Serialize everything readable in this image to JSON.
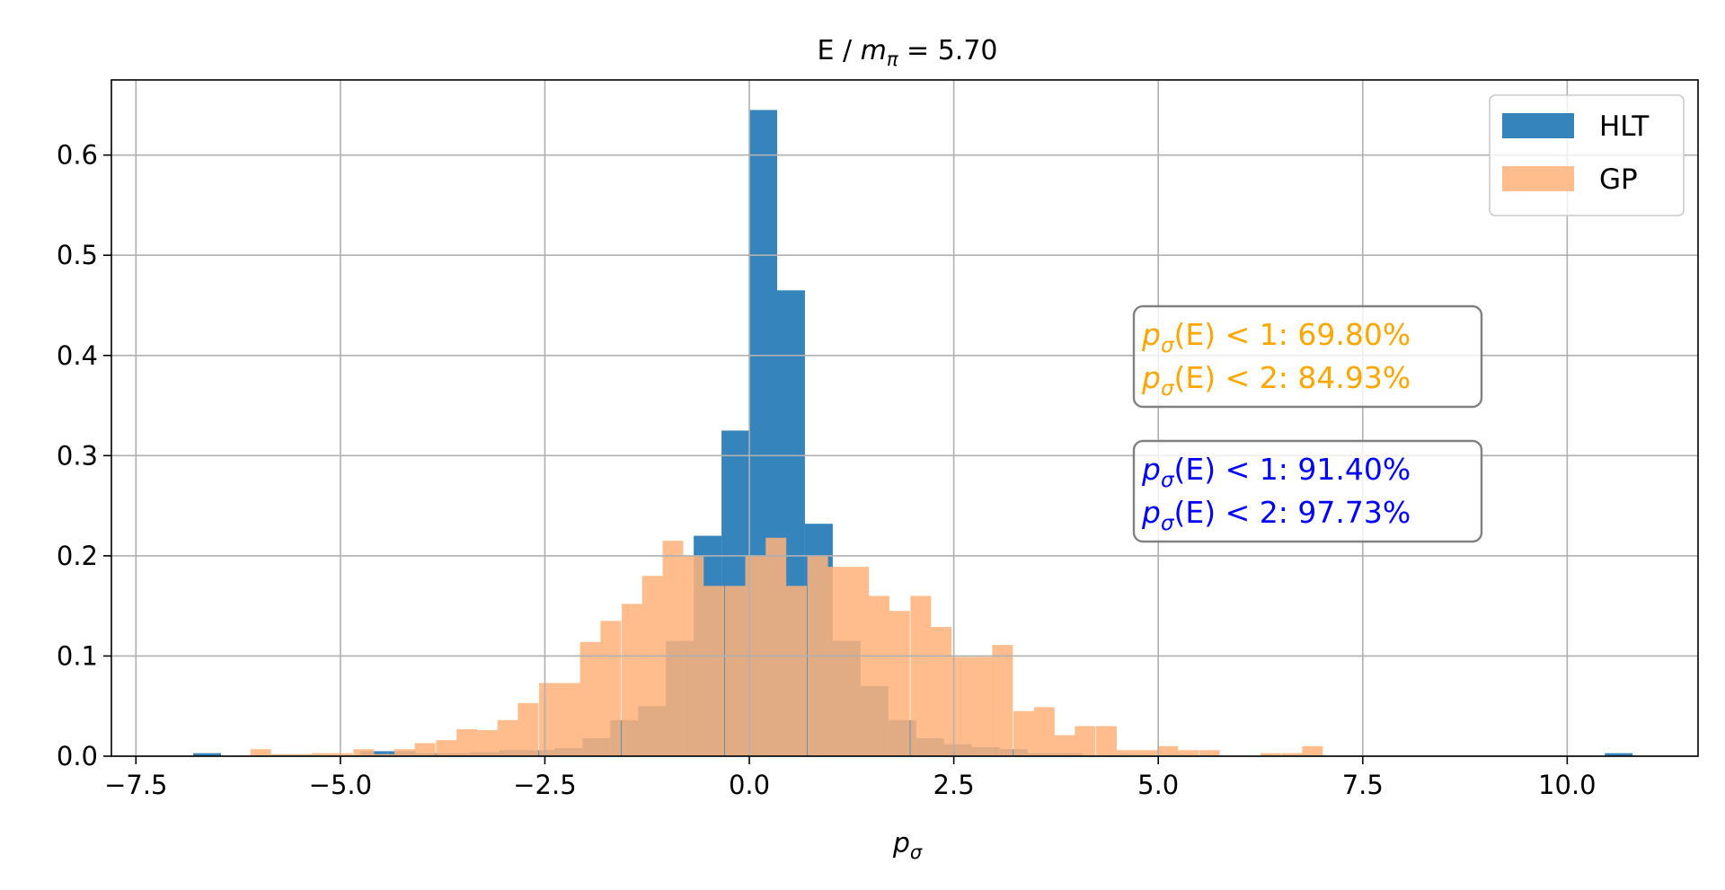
{
  "chart_data": {
    "type": "histogram",
    "title": "E / m_π = 5.70",
    "title_parts": {
      "prefix": "E / ",
      "symbol": "m",
      "subscript": "π",
      "suffix": " = 5.70"
    },
    "xlabel": "p_σ",
    "xlabel_parts": {
      "symbol": "p",
      "subscript": "σ"
    },
    "ylabel": "",
    "xlim": [
      -7.8,
      11.6
    ],
    "ylim": [
      0,
      0.675
    ],
    "xticks": [
      -7.5,
      -5.0,
      -2.5,
      0.0,
      2.5,
      5.0,
      7.5,
      10.0
    ],
    "xtick_labels": [
      "−7.5",
      "−5.0",
      "−2.5",
      "0.0",
      "2.5",
      "5.0",
      "7.5",
      "10.0"
    ],
    "yticks": [
      0.0,
      0.1,
      0.2,
      0.3,
      0.4,
      0.5,
      0.6
    ],
    "ytick_labels": [
      "0.0",
      "0.1",
      "0.2",
      "0.3",
      "0.4",
      "0.5",
      "0.6"
    ],
    "grid": true,
    "legend_position": "top-right",
    "series": [
      {
        "name": "HLT",
        "color": "#1f77b4",
        "opacity": 0.9,
        "bin_width": 0.34,
        "bins": [
          [
            -6.8,
            0.003
          ],
          [
            -4.76,
            0.005
          ],
          [
            -4.42,
            0.005
          ],
          [
            -4.08,
            0.003
          ],
          [
            -3.74,
            0.003
          ],
          [
            -3.4,
            0.004
          ],
          [
            -3.06,
            0.006
          ],
          [
            -2.72,
            0.006
          ],
          [
            -2.38,
            0.008
          ],
          [
            -2.04,
            0.018
          ],
          [
            -1.7,
            0.036
          ],
          [
            -1.36,
            0.05
          ],
          [
            -1.02,
            0.115
          ],
          [
            -0.68,
            0.22
          ],
          [
            -0.34,
            0.325
          ],
          [
            0.0,
            0.645
          ],
          [
            0.34,
            0.465
          ],
          [
            0.68,
            0.232
          ],
          [
            1.02,
            0.115
          ],
          [
            1.36,
            0.07
          ],
          [
            1.7,
            0.036
          ],
          [
            2.04,
            0.018
          ],
          [
            2.38,
            0.012
          ],
          [
            2.72,
            0.009
          ],
          [
            3.06,
            0.007
          ],
          [
            3.4,
            0.003
          ],
          [
            3.74,
            0.003
          ],
          [
            10.46,
            0.003
          ]
        ]
      },
      {
        "name": "GP",
        "color": "#ffb27a",
        "opacity": 0.85,
        "bin_width": 0.2522,
        "bins": [
          [
            -6.1,
            0.007
          ],
          [
            -5.85,
            0.002
          ],
          [
            -5.6,
            0.002
          ],
          [
            -5.35,
            0.003
          ],
          [
            -5.1,
            0.003
          ],
          [
            -4.84,
            0.007
          ],
          [
            -4.59,
            0.002
          ],
          [
            -4.34,
            0.007
          ],
          [
            -4.09,
            0.013
          ],
          [
            -3.83,
            0.016
          ],
          [
            -3.58,
            0.027
          ],
          [
            -3.33,
            0.026
          ],
          [
            -3.08,
            0.036
          ],
          [
            -2.83,
            0.053
          ],
          [
            -2.57,
            0.073
          ],
          [
            -2.32,
            0.073
          ],
          [
            -2.07,
            0.114
          ],
          [
            -1.82,
            0.135
          ],
          [
            -1.56,
            0.152
          ],
          [
            -1.31,
            0.18
          ],
          [
            -1.06,
            0.215
          ],
          [
            -0.81,
            0.2
          ],
          [
            -0.56,
            0.17
          ],
          [
            -0.3,
            0.17
          ],
          [
            -0.05,
            0.2
          ],
          [
            0.2,
            0.218
          ],
          [
            0.45,
            0.17
          ],
          [
            0.71,
            0.2
          ],
          [
            0.96,
            0.189
          ],
          [
            1.21,
            0.189
          ],
          [
            1.46,
            0.16
          ],
          [
            1.71,
            0.145
          ],
          [
            1.97,
            0.16
          ],
          [
            2.22,
            0.129
          ],
          [
            2.47,
            0.099
          ],
          [
            2.72,
            0.099
          ],
          [
            2.97,
            0.111
          ],
          [
            3.23,
            0.045
          ],
          [
            3.48,
            0.049
          ],
          [
            3.73,
            0.021
          ],
          [
            3.98,
            0.03
          ],
          [
            4.24,
            0.03
          ],
          [
            4.49,
            0.006
          ],
          [
            4.74,
            0.006
          ],
          [
            4.99,
            0.01
          ],
          [
            5.24,
            0.006
          ],
          [
            5.5,
            0.006
          ],
          [
            6.25,
            0.003
          ],
          [
            6.51,
            0.003
          ],
          [
            6.76,
            0.01
          ]
        ]
      }
    ],
    "annotations": [
      {
        "color": "#ffa500",
        "lines": [
          {
            "symbol": "p",
            "subscript": "σ",
            "rest": "(E) < 1: 69.80%"
          },
          {
            "symbol": "p",
            "subscript": "σ",
            "rest": "(E) < 2: 84.93%"
          }
        ]
      },
      {
        "color": "#0000ff",
        "lines": [
          {
            "symbol": "p",
            "subscript": "σ",
            "rest": "(E) < 1: 91.40%"
          },
          {
            "symbol": "p",
            "subscript": "σ",
            "rest": "(E) < 2: 97.73%"
          }
        ]
      }
    ]
  }
}
